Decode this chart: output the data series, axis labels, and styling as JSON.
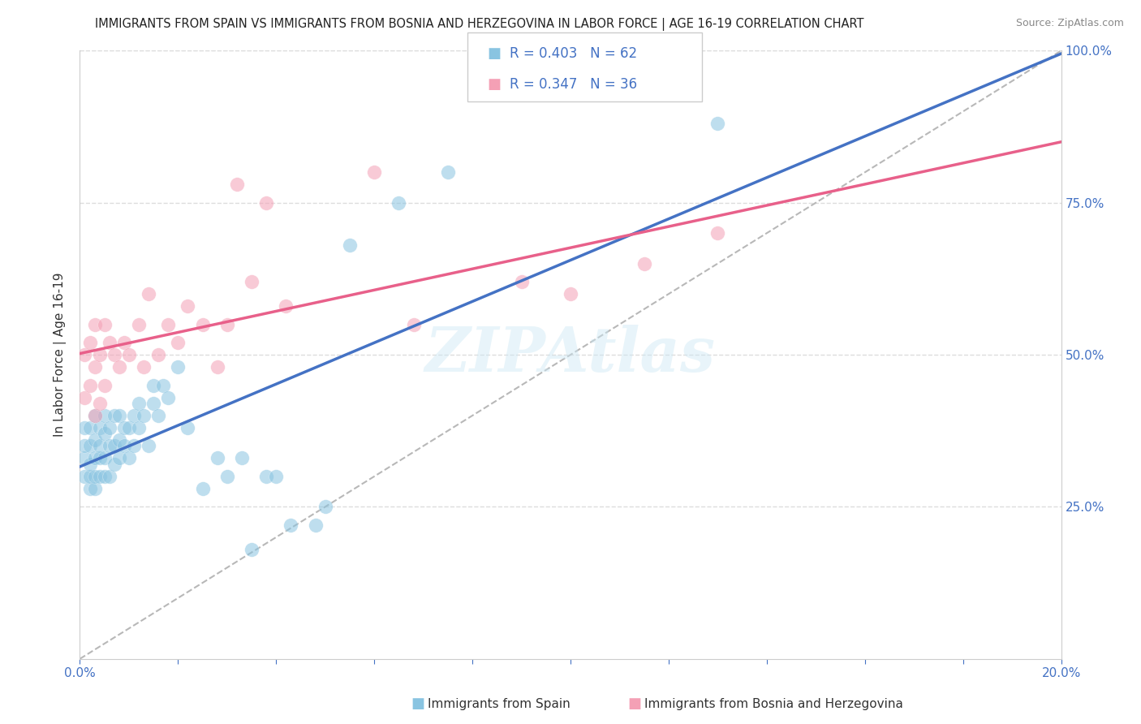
{
  "title": "IMMIGRANTS FROM SPAIN VS IMMIGRANTS FROM BOSNIA AND HERZEGOVINA IN LABOR FORCE | AGE 16-19 CORRELATION CHART",
  "source": "Source: ZipAtlas.com",
  "ylabel": "In Labor Force | Age 16-19",
  "legend_label_blue": "Immigrants from Spain",
  "legend_label_pink": "Immigrants from Bosnia and Herzegovina",
  "R_blue": 0.403,
  "N_blue": 62,
  "R_pink": 0.347,
  "N_pink": 36,
  "xlim": [
    0.0,
    0.2
  ],
  "ylim": [
    0.0,
    1.0
  ],
  "ytick_labels": [
    "25.0%",
    "50.0%",
    "75.0%",
    "100.0%"
  ],
  "ytick_vals": [
    0.25,
    0.5,
    0.75,
    1.0
  ],
  "color_blue": "#89c4e1",
  "color_pink": "#f4a0b5",
  "color_line_blue": "#4472c4",
  "color_line_pink": "#e8608a",
  "color_dashed": "#b8b8b8",
  "color_tick": "#4472c4",
  "blue_scatter_x": [
    0.001,
    0.001,
    0.001,
    0.001,
    0.002,
    0.002,
    0.002,
    0.002,
    0.002,
    0.003,
    0.003,
    0.003,
    0.003,
    0.003,
    0.004,
    0.004,
    0.004,
    0.004,
    0.005,
    0.005,
    0.005,
    0.005,
    0.006,
    0.006,
    0.006,
    0.007,
    0.007,
    0.007,
    0.008,
    0.008,
    0.008,
    0.009,
    0.009,
    0.01,
    0.01,
    0.011,
    0.011,
    0.012,
    0.012,
    0.013,
    0.014,
    0.015,
    0.015,
    0.016,
    0.017,
    0.018,
    0.02,
    0.022,
    0.025,
    0.028,
    0.03,
    0.033,
    0.035,
    0.038,
    0.04,
    0.043,
    0.048,
    0.05,
    0.055,
    0.065,
    0.075,
    0.13
  ],
  "blue_scatter_y": [
    0.3,
    0.33,
    0.35,
    0.38,
    0.28,
    0.3,
    0.32,
    0.35,
    0.38,
    0.28,
    0.3,
    0.33,
    0.36,
    0.4,
    0.3,
    0.33,
    0.35,
    0.38,
    0.3,
    0.33,
    0.37,
    0.4,
    0.3,
    0.35,
    0.38,
    0.32,
    0.35,
    0.4,
    0.33,
    0.36,
    0.4,
    0.35,
    0.38,
    0.33,
    0.38,
    0.35,
    0.4,
    0.38,
    0.42,
    0.4,
    0.35,
    0.42,
    0.45,
    0.4,
    0.45,
    0.43,
    0.48,
    0.38,
    0.28,
    0.33,
    0.3,
    0.33,
    0.18,
    0.3,
    0.3,
    0.22,
    0.22,
    0.25,
    0.68,
    0.75,
    0.8,
    0.88
  ],
  "pink_scatter_x": [
    0.001,
    0.001,
    0.002,
    0.002,
    0.003,
    0.003,
    0.003,
    0.004,
    0.004,
    0.005,
    0.005,
    0.006,
    0.007,
    0.008,
    0.009,
    0.01,
    0.012,
    0.013,
    0.014,
    0.016,
    0.018,
    0.02,
    0.022,
    0.025,
    0.028,
    0.03,
    0.032,
    0.035,
    0.038,
    0.042,
    0.06,
    0.068,
    0.09,
    0.1,
    0.115,
    0.13
  ],
  "pink_scatter_y": [
    0.43,
    0.5,
    0.45,
    0.52,
    0.4,
    0.48,
    0.55,
    0.42,
    0.5,
    0.45,
    0.55,
    0.52,
    0.5,
    0.48,
    0.52,
    0.5,
    0.55,
    0.48,
    0.6,
    0.5,
    0.55,
    0.52,
    0.58,
    0.55,
    0.48,
    0.55,
    0.78,
    0.62,
    0.75,
    0.58,
    0.8,
    0.55,
    0.62,
    0.6,
    0.65,
    0.7
  ]
}
